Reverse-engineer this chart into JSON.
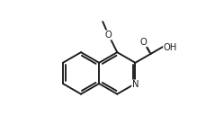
{
  "bg_color": "#ffffff",
  "line_color": "#1a1a1a",
  "lw": 1.35,
  "fs": 7.2,
  "dpi": 100,
  "fig_w": 2.3,
  "fig_h": 1.48,
  "xlim": [
    -2.7,
    2.5
  ],
  "ylim": [
    -2.1,
    2.4
  ],
  "scale": 0.72,
  "ox": -0.25,
  "oy": -0.08,
  "sep": 0.085,
  "shr": 0.11
}
